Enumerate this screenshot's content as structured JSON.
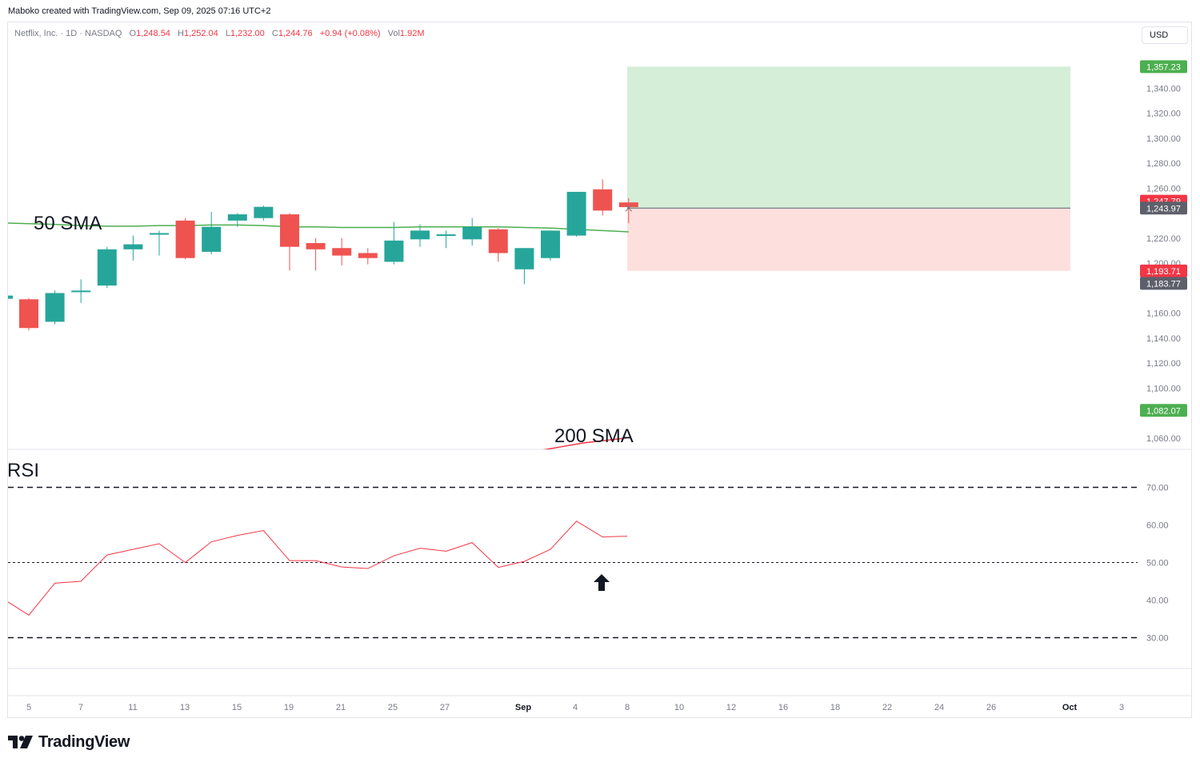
{
  "header": {
    "credit": "Maboko created with TradingView.com, Sep 09, 2025 07:16 UTC+2",
    "symbol": "Netflix, Inc. · 1D · NASDAQ",
    "open_label": "O",
    "open": "1,248.54",
    "high_label": "H",
    "high": "1,252.04",
    "low_label": "L",
    "low": "1,232.00",
    "close_label": "C",
    "close": "1,244.76",
    "change": "+0.94 (+0.08%)",
    "vol_label": "Vol",
    "vol": "1.92M",
    "currency": "USD"
  },
  "annotations": {
    "sma50": "50 SMA",
    "sma200": "200 SMA",
    "rsi": "RSI"
  },
  "footer": {
    "brand": "TradingView"
  },
  "colors": {
    "up": "#26a69a",
    "down": "#ef5350",
    "sma50": "#4caf50",
    "sma200": "#f23645",
    "rsi": "#f23645",
    "profit": "#d4eed7",
    "loss": "#fde0de",
    "grid": "#e0e3eb",
    "text": "#131722",
    "axis_text": "#787b86",
    "tag_green": "#4caf50",
    "tag_red": "#f23645",
    "tag_gray": "#5d606b"
  },
  "chart_data": [
    {
      "type": "candlestick",
      "title": "Netflix, Inc. · 1D · NASDAQ",
      "ylim": [
        1050,
        1370
      ],
      "y_ticks": [
        "1,060.00",
        "1,100.00",
        "1,120.00",
        "1,140.00",
        "1,160.00",
        "1,200.00",
        "1,220.00",
        "1,260.00",
        "1,280.00",
        "1,300.00",
        "1,320.00",
        "1,340.00"
      ],
      "x_ticks": [
        "5",
        "7",
        "11",
        "13",
        "15",
        "19",
        "21",
        "25",
        "27",
        "Sep",
        "4",
        "8",
        "10",
        "12",
        "16",
        "18",
        "22",
        "24",
        "26",
        "Oct",
        "3"
      ],
      "candles": [
        {
          "o": 1171,
          "h": 1172,
          "l": 1146,
          "c": 1148
        },
        {
          "o": 1153,
          "h": 1178,
          "l": 1151,
          "c": 1176
        },
        {
          "o": 1177,
          "h": 1187,
          "l": 1168,
          "c": 1178
        },
        {
          "o": 1182,
          "h": 1213,
          "l": 1180,
          "c": 1211
        },
        {
          "o": 1211,
          "h": 1222,
          "l": 1202,
          "c": 1215
        },
        {
          "o": 1224,
          "h": 1226,
          "l": 1206,
          "c": 1224
        },
        {
          "o": 1234,
          "h": 1236,
          "l": 1203,
          "c": 1204
        },
        {
          "o": 1209,
          "h": 1241,
          "l": 1207,
          "c": 1229
        },
        {
          "o": 1234,
          "h": 1240,
          "l": 1229,
          "c": 1239
        },
        {
          "o": 1236,
          "h": 1246,
          "l": 1234,
          "c": 1245
        },
        {
          "o": 1239,
          "h": 1240,
          "l": 1194,
          "c": 1213
        },
        {
          "o": 1216,
          "h": 1220,
          "l": 1194,
          "c": 1211
        },
        {
          "o": 1212,
          "h": 1220,
          "l": 1198,
          "c": 1206
        },
        {
          "o": 1208,
          "h": 1212,
          "l": 1199,
          "c": 1204
        },
        {
          "o": 1201,
          "h": 1233,
          "l": 1199,
          "c": 1218
        },
        {
          "o": 1219,
          "h": 1231,
          "l": 1213,
          "c": 1226
        },
        {
          "o": 1223,
          "h": 1226,
          "l": 1212,
          "c": 1223
        },
        {
          "o": 1219,
          "h": 1236,
          "l": 1214,
          "c": 1229
        },
        {
          "o": 1227,
          "h": 1228,
          "l": 1201,
          "c": 1208
        },
        {
          "o": 1195,
          "h": 1211,
          "l": 1183,
          "c": 1212
        },
        {
          "o": 1204,
          "h": 1226,
          "l": 1202,
          "c": 1226
        },
        {
          "o": 1222,
          "h": 1257,
          "l": 1221,
          "c": 1257
        },
        {
          "o": 1259,
          "h": 1267,
          "l": 1238,
          "c": 1242
        },
        {
          "o": 1248.54,
          "h": 1252.04,
          "l": 1232,
          "c": 1244.76
        }
      ],
      "sma50": [
        1232,
        1231,
        1230,
        1229.5,
        1229.5,
        1230,
        1230,
        1230.5,
        1230.5,
        1230,
        1229,
        1229,
        1228.5,
        1228.5,
        1228.5,
        1229,
        1229,
        1229,
        1229,
        1228.5,
        1228,
        1227,
        1226,
        1225
      ],
      "sma200": [
        1038,
        1040,
        1043,
        1045,
        1047,
        1050,
        1053,
        1056,
        1058,
        1060
      ],
      "price_tags": [
        {
          "label": "1,357.23",
          "value": 1357.23,
          "color": "#4caf50"
        },
        {
          "label": "1,247.79",
          "value": 1249.5,
          "color": "#f23645"
        },
        {
          "label": "1,243.97",
          "value": 1243.97,
          "color": "#5d606b"
        },
        {
          "label": "1,193.71",
          "value": 1193.71,
          "color": "#f23645"
        },
        {
          "label": "1,183.77",
          "value": 1183.77,
          "color": "#5d606b"
        },
        {
          "label": "1,082.07",
          "value": 1082.07,
          "color": "#4caf50"
        }
      ],
      "position": {
        "entry": 1243.97,
        "target": 1357.23,
        "stop": 1193.71
      }
    },
    {
      "type": "line",
      "title": "RSI",
      "ylim": [
        22,
        78
      ],
      "y_ticks": [
        "30.00",
        "40.00",
        "50.00",
        "60.00",
        "70.00"
      ],
      "levels": [
        70,
        50,
        30
      ],
      "series": [
        {
          "values": [
            39.5,
            36,
            44.5,
            45,
            52,
            53.5,
            55,
            50,
            55.5,
            57.2,
            58.5,
            50.5,
            50.5,
            48.8,
            48.4,
            51.8,
            53.8,
            53,
            55.3,
            48.7,
            50.3,
            53.5,
            61,
            56.8,
            57
          ]
        }
      ]
    }
  ]
}
